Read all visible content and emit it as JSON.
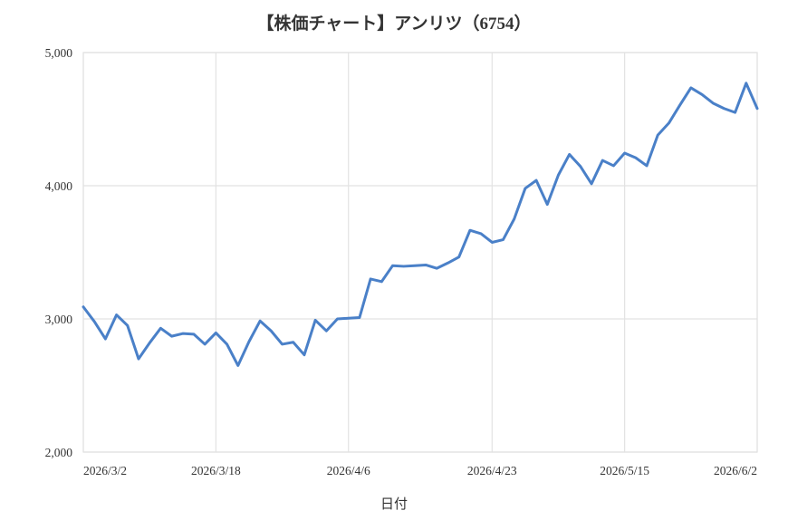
{
  "chart_data": {
    "type": "line",
    "title": "【株価チャート】アンリツ（6754）",
    "xlabel": "日付",
    "ylabel": "",
    "ylim": [
      2000,
      5000
    ],
    "yticks": [
      2000,
      3000,
      4000,
      5000
    ],
    "ytick_labels": [
      "2,000",
      "3,000",
      "4,000",
      "5,000"
    ],
    "xtick_labels": [
      "2026/3/2",
      "2026/3/18",
      "2026/4/6",
      "2026/4/23",
      "2026/5/15",
      "2026/6/2"
    ],
    "xtick_index": [
      0,
      12,
      24,
      37,
      49,
      61
    ],
    "grid": true,
    "legend": "none",
    "series_color": "#4a80c8",
    "series": [
      {
        "values": [
          3090,
          2980,
          2850,
          3030,
          2950,
          2700,
          2820,
          2930,
          2870,
          2890,
          2885,
          2810,
          2895,
          2810,
          2650,
          2830,
          2985,
          2910,
          2810,
          2825,
          2730,
          2990,
          2910,
          3000,
          3005,
          3010,
          3300,
          3280,
          3400,
          3395,
          3400,
          3405,
          3380,
          3420,
          3465,
          3665,
          3640,
          3575,
          3595,
          3750,
          3980,
          4040,
          3860,
          4080,
          4235,
          4145,
          4015,
          4190,
          4150,
          4245,
          4210,
          4150,
          4380,
          4470,
          4605,
          4735,
          4685,
          4620,
          4580,
          4550,
          4770,
          4580
        ]
      }
    ]
  }
}
